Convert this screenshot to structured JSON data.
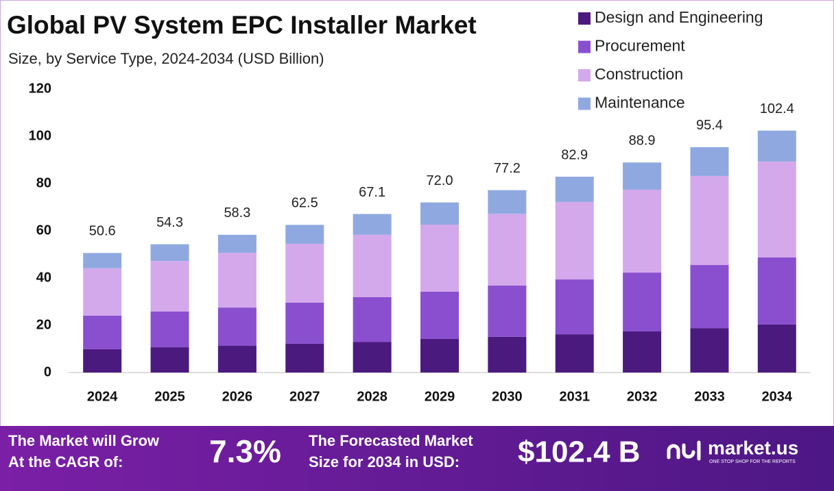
{
  "chart_data": {
    "type": "stacked_bar",
    "title": "Global PV System EPC Installer Market",
    "subtitle": "Size, by Service Type, 2024-2034 (USD Billion)",
    "categories": [
      "2024",
      "2025",
      "2026",
      "2027",
      "2028",
      "2029",
      "2030",
      "2031",
      "2032",
      "2033",
      "2034"
    ],
    "series": [
      {
        "name": "Design and Engineering",
        "color": "#4b1a7f",
        "values": [
          9.9,
          10.7,
          11.3,
          12.2,
          13.0,
          14.2,
          15.1,
          16.2,
          17.4,
          18.8,
          20.3
        ]
      },
      {
        "name": "Procurement",
        "color": "#8a4fcf",
        "values": [
          14.2,
          15.1,
          16.2,
          17.4,
          18.9,
          20.0,
          21.7,
          23.2,
          24.9,
          26.7,
          28.4
        ]
      },
      {
        "name": "Construction",
        "color": "#d3a9ec",
        "values": [
          20.0,
          21.4,
          23.2,
          24.9,
          26.4,
          28.4,
          30.4,
          32.8,
          35.1,
          37.7,
          40.6
        ]
      },
      {
        "name": "Maintenance",
        "color": "#8fa9e0",
        "values": [
          6.5,
          7.1,
          7.6,
          8.0,
          8.8,
          9.4,
          10.0,
          10.7,
          11.5,
          12.2,
          13.1
        ]
      }
    ],
    "totals": [
      50.6,
      54.3,
      58.3,
      62.5,
      67.1,
      72.0,
      77.2,
      82.9,
      88.9,
      95.4,
      102.4
    ],
    "total_labels": [
      "50.6",
      "54.3",
      "58.3",
      "62.5",
      "67.1",
      "72.0",
      "77.2",
      "82.9",
      "88.9",
      "95.4",
      "102.4"
    ],
    "ylim": [
      0,
      120
    ],
    "yticks": [
      0,
      20,
      40,
      60,
      80,
      100,
      120
    ],
    "grid": false,
    "legend": "top-right"
  },
  "footer": {
    "cagr_text": [
      "The Market will Grow",
      "At the CAGR of:"
    ],
    "cagr_value": "7.3%",
    "forecast_text": [
      "The Forecasted Market",
      "Size for 2034 in USD:"
    ],
    "forecast_value": "$102.4 B",
    "logo": "market.us",
    "tagline": "ONE STOP SHOP FOR THE REPORTS"
  }
}
